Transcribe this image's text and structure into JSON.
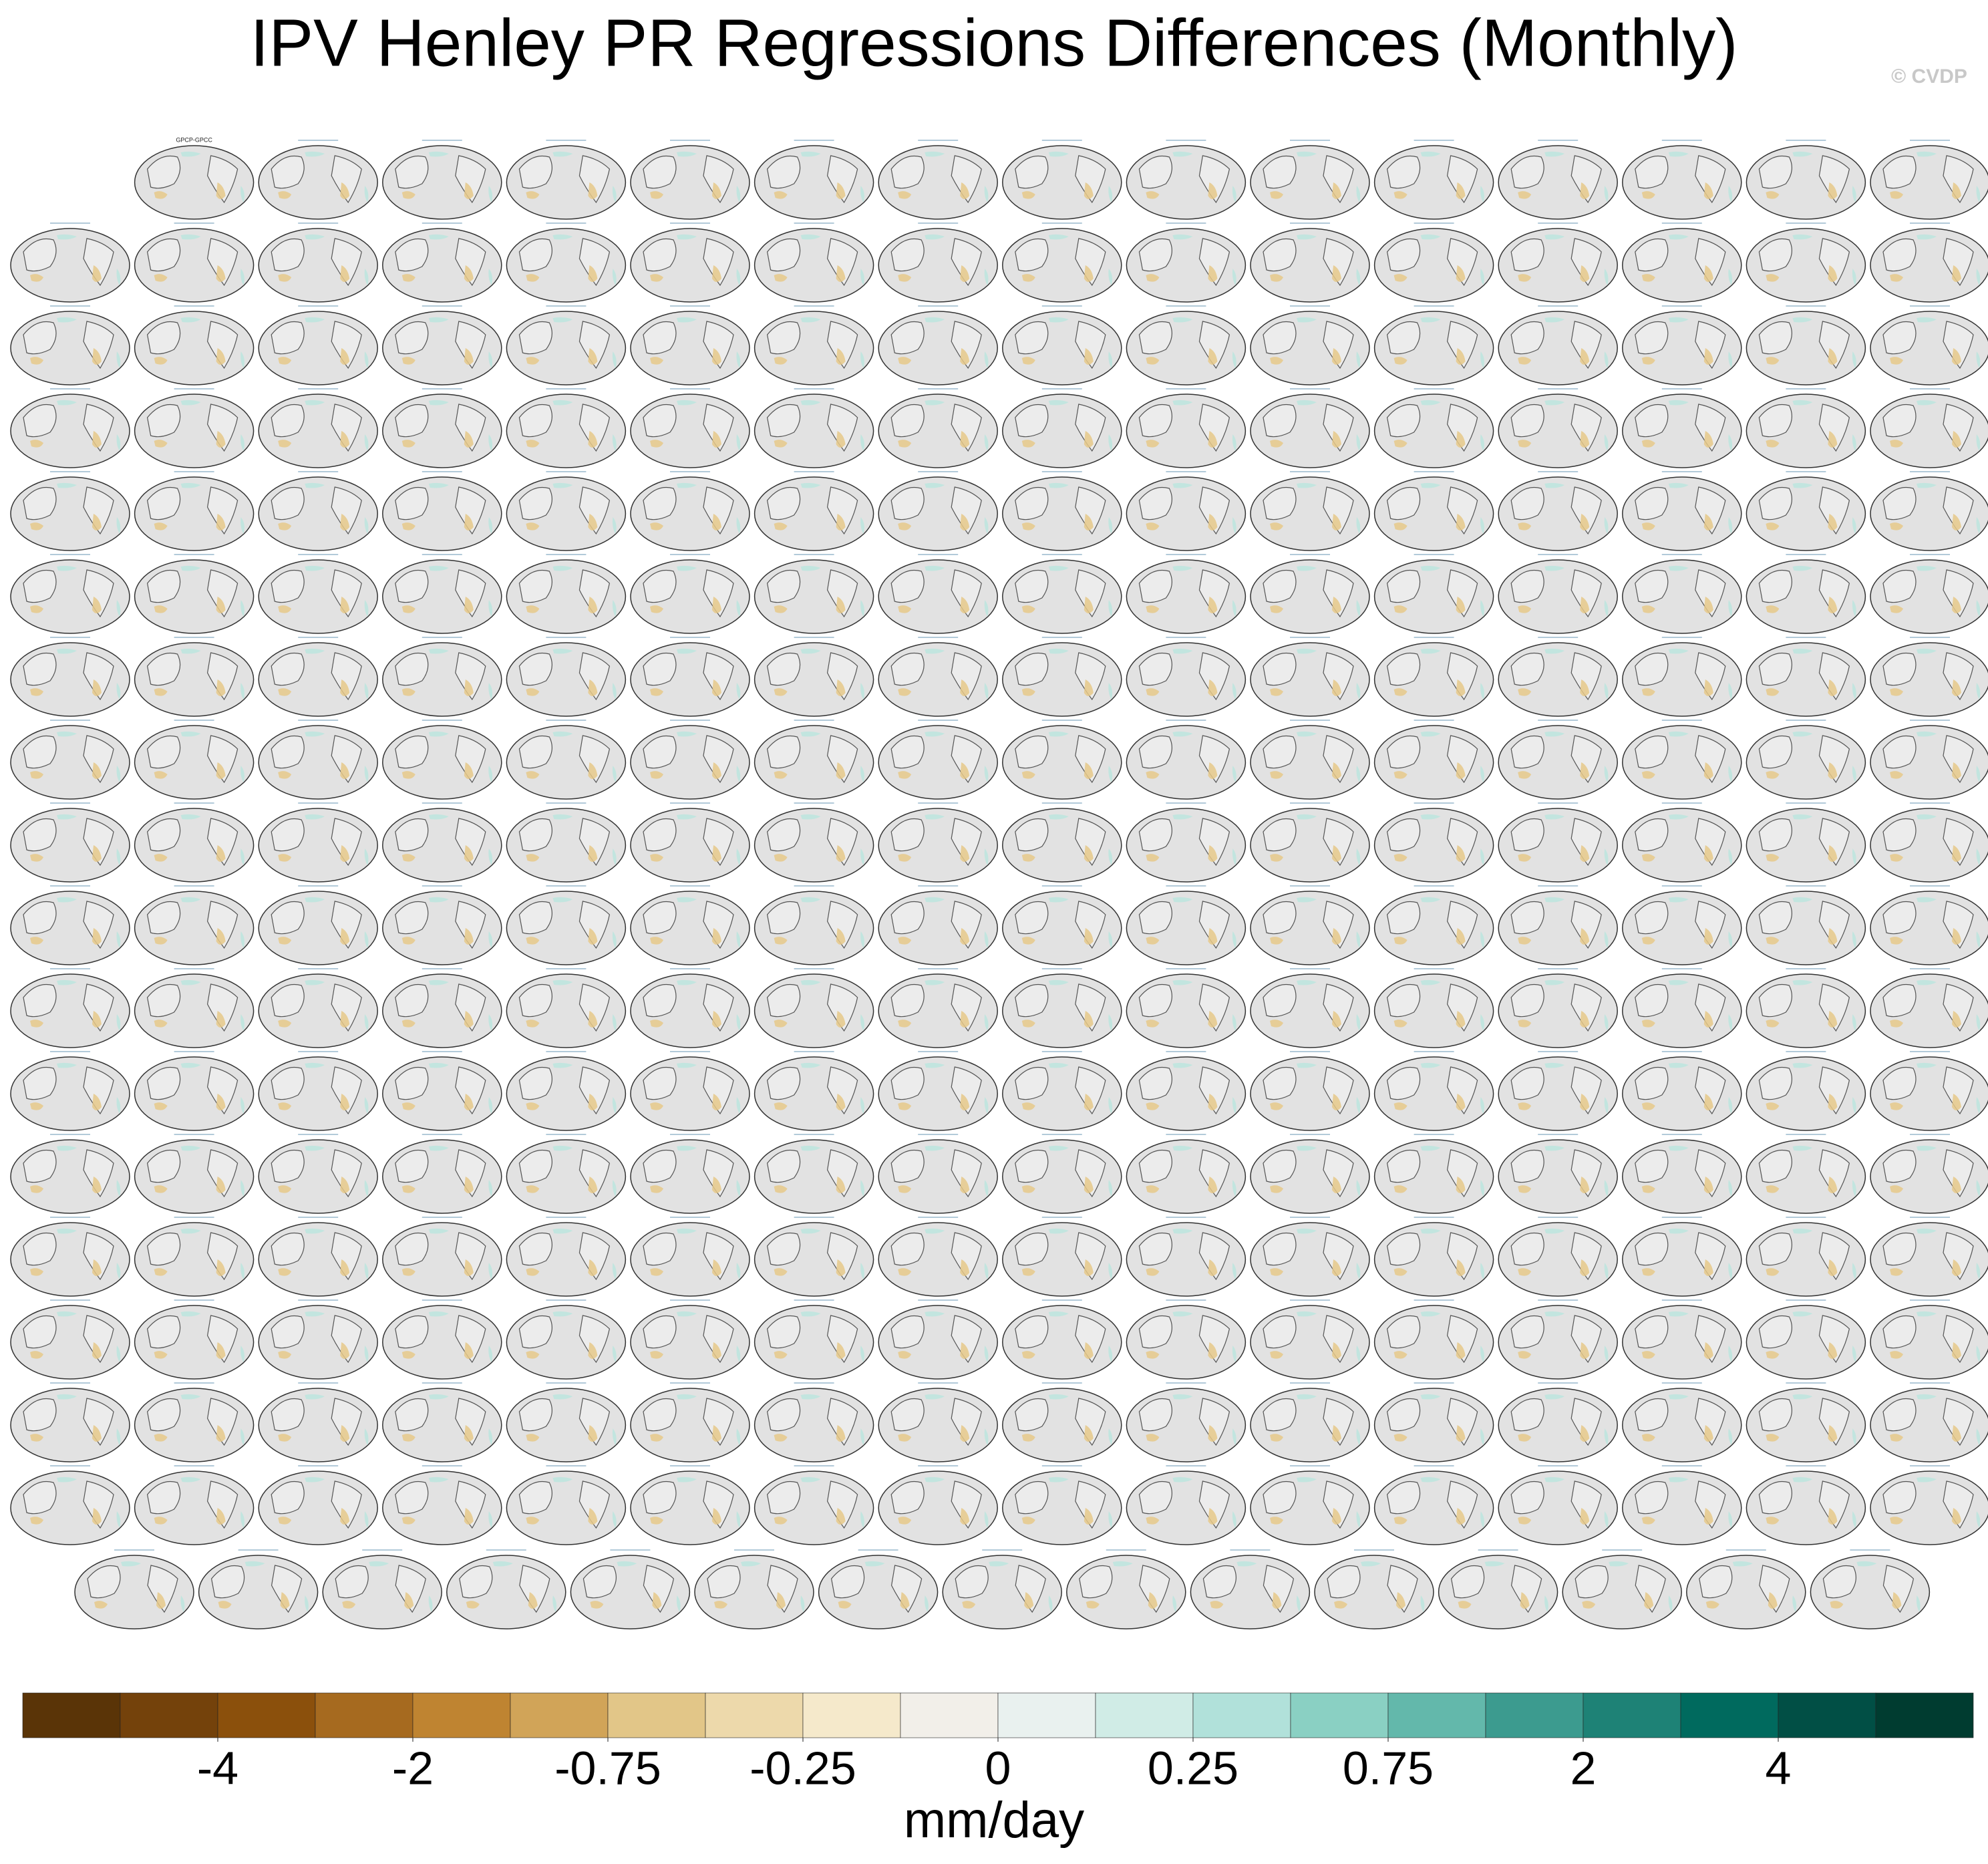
{
  "chart_data": {
    "type": "colorbar",
    "title": "IPV Henley PR Regressions Differences (Monthly)",
    "watermark": "© CVDP",
    "first_panel_label": "GPCP-GPCC",
    "units": "mm/day",
    "levels": [
      -5,
      -4,
      -3,
      -2,
      -1,
      -0.75,
      -0.5,
      -0.25,
      -0.1,
      0,
      0.1,
      0.25,
      0.5,
      0.75,
      1,
      2,
      3,
      4,
      5
    ],
    "colors": [
      "#5a3407",
      "#74420b",
      "#8b500c",
      "#a66a1f",
      "#bf8431",
      "#d1a458",
      "#e2c688",
      "#edd9ab",
      "#f5e9cb",
      "#f2efe9",
      "#e9f1ef",
      "#d0ece6",
      "#b1e1da",
      "#8ad0c3",
      "#63b8ab",
      "#3c9b8f",
      "#1e8276",
      "#006a5e",
      "#014f45",
      "#003c30"
    ],
    "ticks": [
      -4,
      -2,
      -0.75,
      -0.25,
      0,
      0.25,
      0.75,
      2,
      4
    ]
  }
}
